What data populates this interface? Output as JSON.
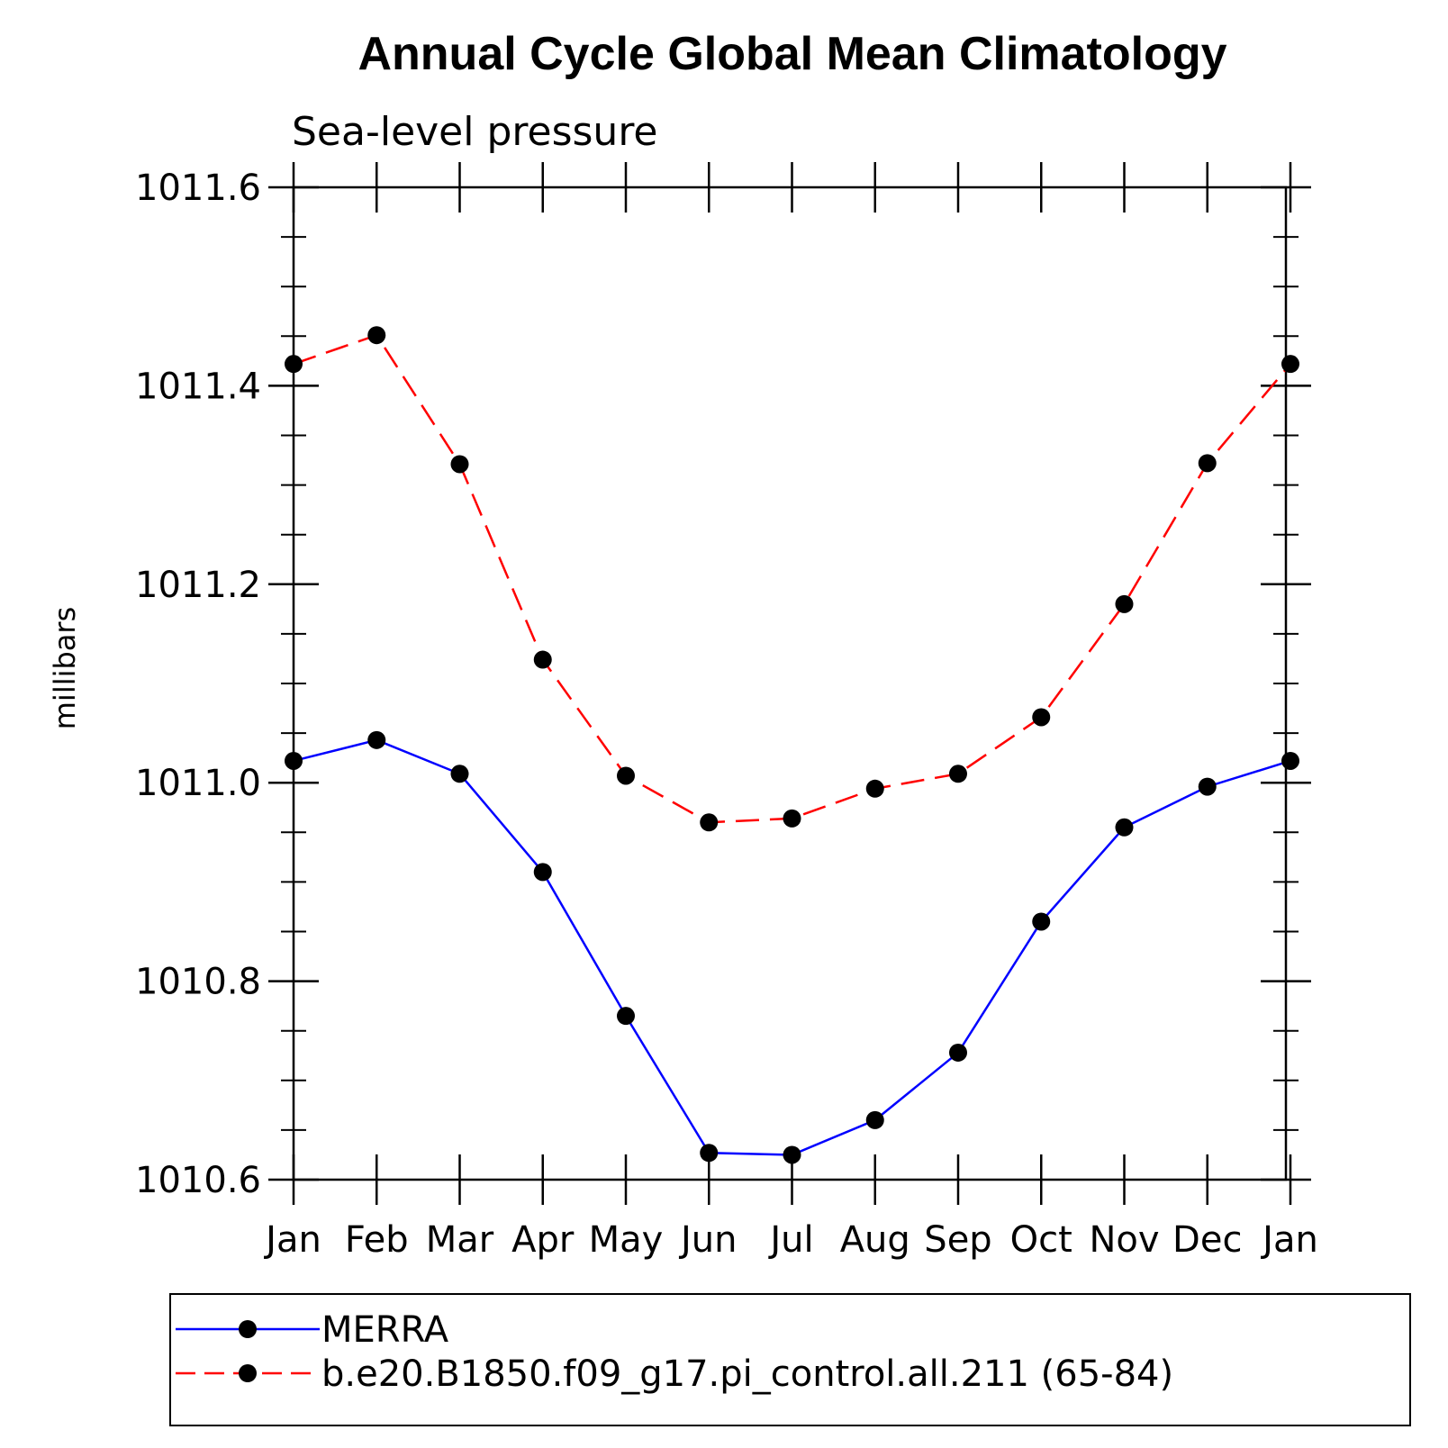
{
  "chart_data": {
    "type": "line",
    "title": "Annual Cycle Global Mean Climatology",
    "subtitle": "Sea-level pressure",
    "ylabel": "millibars",
    "xlabel": "",
    "categories": [
      "Jan",
      "Feb",
      "Mar",
      "Apr",
      "May",
      "Jun",
      "Jul",
      "Aug",
      "Sep",
      "Oct",
      "Nov",
      "Dec",
      "Jan"
    ],
    "ylim": [
      1010.6,
      1011.6
    ],
    "yticks": [
      "1010.6",
      "1010.8",
      "1011.0",
      "1011.2",
      "1011.4",
      "1011.6"
    ],
    "ytick_values": [
      1010.6,
      1010.8,
      1011.0,
      1011.2,
      1011.4,
      1011.6
    ],
    "y_minor_step": 0.05,
    "grid": false,
    "legend_position": "bottom",
    "series": [
      {
        "name": "MERRA",
        "color": "#0000ff",
        "dash": "solid",
        "values": [
          1011.022,
          1011.043,
          1011.009,
          1010.91,
          1010.765,
          1010.627,
          1010.625,
          1010.66,
          1010.728,
          1010.86,
          1010.955,
          1010.996,
          1011.022
        ]
      },
      {
        "name": "b.e20.B1850.f09_g17.pi_control.all.211 (65-84)",
        "color": "#ff0000",
        "dash": "dashed",
        "values": [
          1011.422,
          1011.451,
          1011.321,
          1011.124,
          1011.007,
          1010.96,
          1010.964,
          1010.994,
          1011.009,
          1011.066,
          1011.18,
          1011.322,
          1011.422
        ]
      }
    ]
  }
}
